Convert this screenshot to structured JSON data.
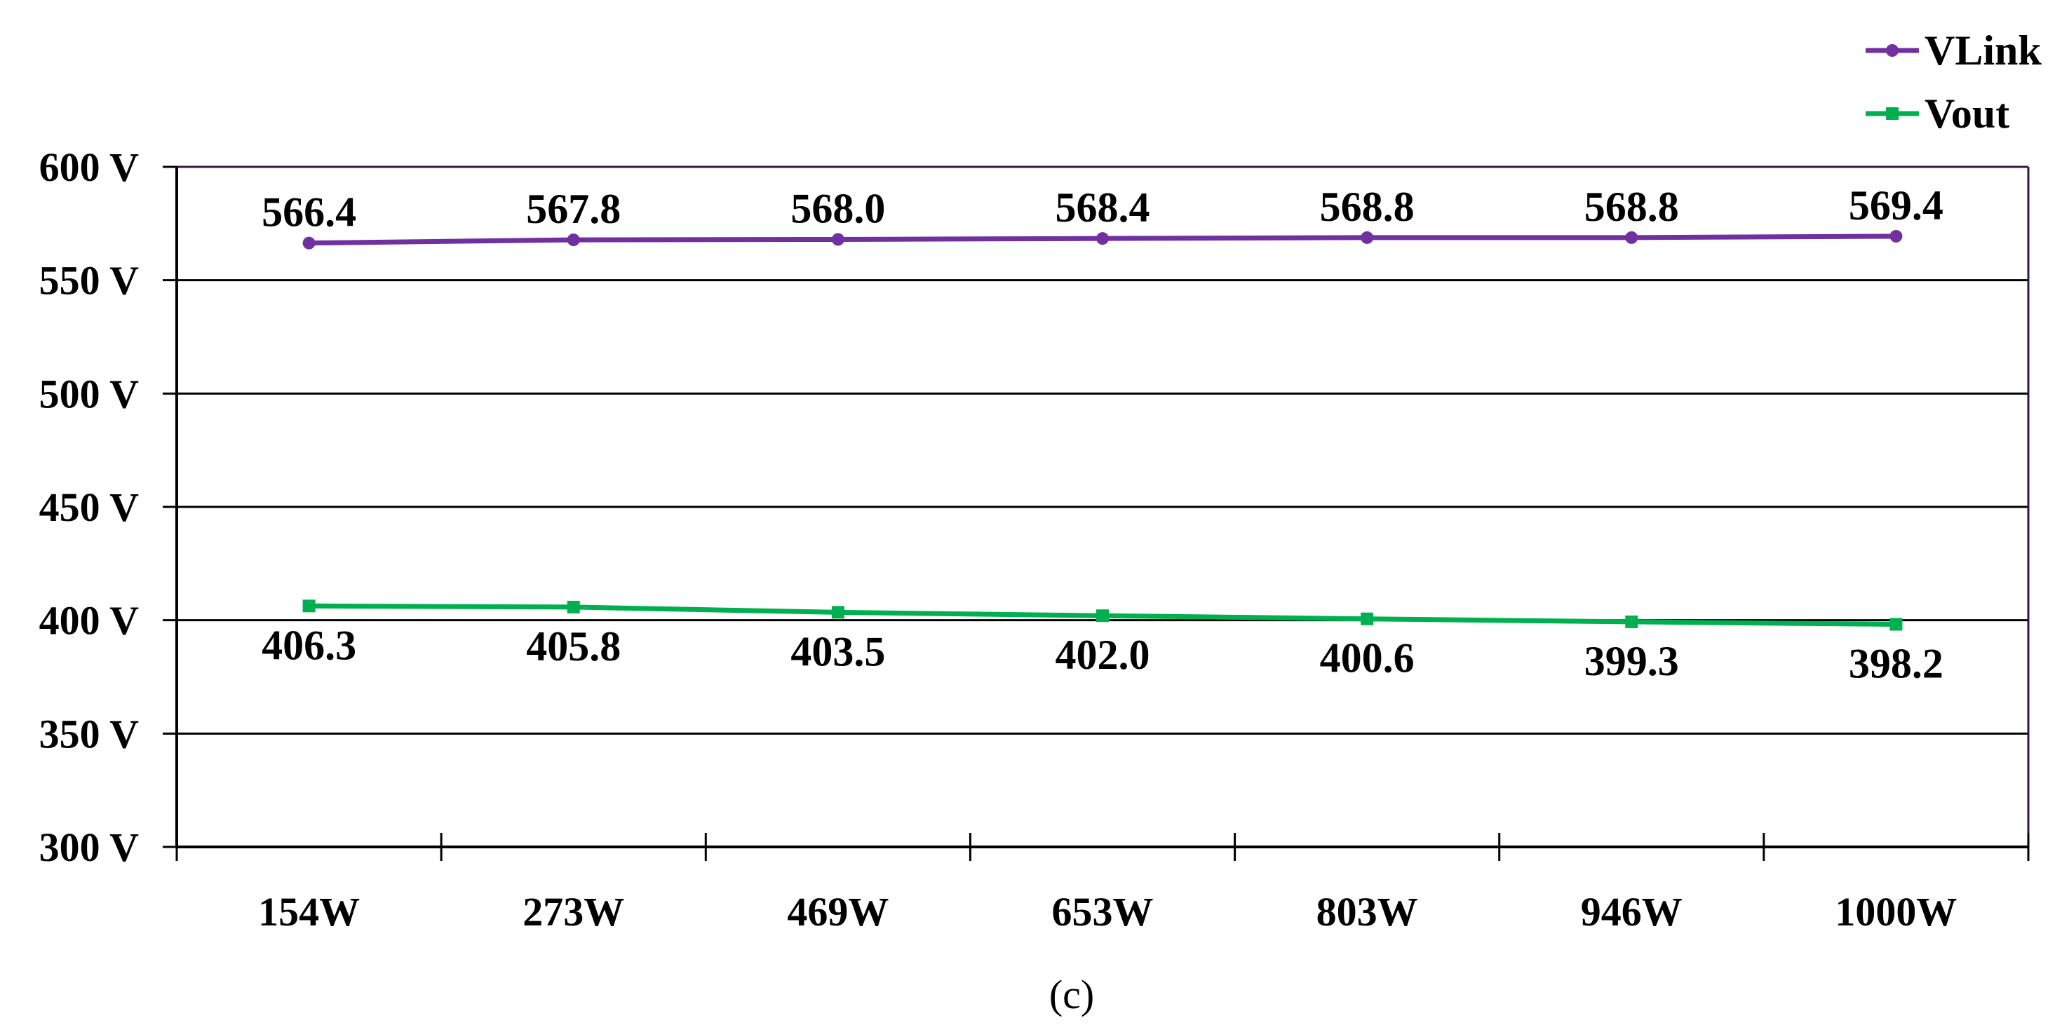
{
  "chart_data": {
    "type": "line",
    "categories": [
      "154W",
      "273W",
      "469W",
      "653W",
      "803W",
      "946W",
      "1000W"
    ],
    "ylim": [
      300,
      600
    ],
    "yticks": [
      300,
      350,
      400,
      450,
      500,
      550,
      600
    ],
    "ytick_labels": [
      "300 V",
      "350 V",
      "400 V",
      "450 V",
      "500 V",
      "550 V",
      "600 V"
    ],
    "grid": true,
    "legend_position": "top-right",
    "caption": "(c)",
    "series": [
      {
        "name": "VLink",
        "color": "#7030a0",
        "marker": "circle",
        "values": [
          566.4,
          567.8,
          568.0,
          568.4,
          568.8,
          568.8,
          569.4
        ],
        "labels": [
          "566.4",
          "567.8",
          "568.0",
          "568.4",
          "568.8",
          "568.8",
          "569.4"
        ],
        "label_position": "above"
      },
      {
        "name": "Vout",
        "color": "#00b050",
        "marker": "square",
        "values": [
          406.3,
          405.8,
          403.5,
          402.0,
          400.6,
          399.3,
          398.2
        ],
        "labels": [
          "406.3",
          "405.8",
          "403.5",
          "402.0",
          "400.6",
          "399.3",
          "398.2"
        ],
        "label_position": "below"
      }
    ]
  }
}
